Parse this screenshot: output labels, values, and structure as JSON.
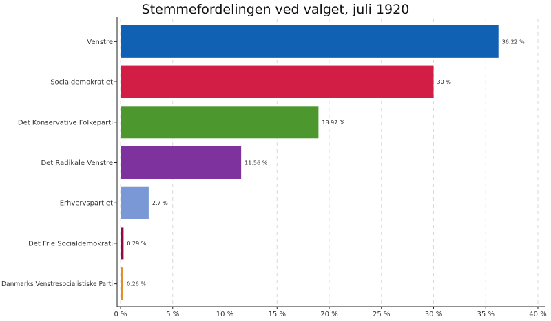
{
  "chart_data": {
    "type": "bar",
    "orientation": "horizontal",
    "title": "Stemmefordelingen ved valget, juli 1920",
    "categories": [
      "Venstre",
      "Socialdemokratiet",
      "Det Konservative Folkeparti",
      "Det Radikale Venstre",
      "Erhvervspartiet",
      "Det Frie Socialdemokrati",
      "Danmarks Venstresocialistiske Parti"
    ],
    "values": [
      36.22,
      30,
      18.97,
      11.56,
      2.7,
      0.29,
      0.26
    ],
    "value_labels": [
      "36.22 %",
      "30 %",
      "18.97 %",
      "11.56 %",
      "2.7 %",
      "0.29 %",
      "0.26 %"
    ],
    "colors": [
      "#1060b4",
      "#d21d45",
      "#4c982f",
      "#7e329e",
      "#7b98d6",
      "#8e0b46",
      "#e0902b"
    ],
    "x_ticks": [
      0,
      5,
      10,
      15,
      20,
      25,
      30,
      35,
      40
    ],
    "x_tick_labels": [
      "0 %",
      "5 %",
      "10 %",
      "15 %",
      "20 %",
      "25 %",
      "30 %",
      "35 %",
      "40 %"
    ],
    "xlim": [
      0,
      40
    ],
    "xlabel": "",
    "ylabel": "",
    "grid": "vertical dashed",
    "legend": "none"
  }
}
